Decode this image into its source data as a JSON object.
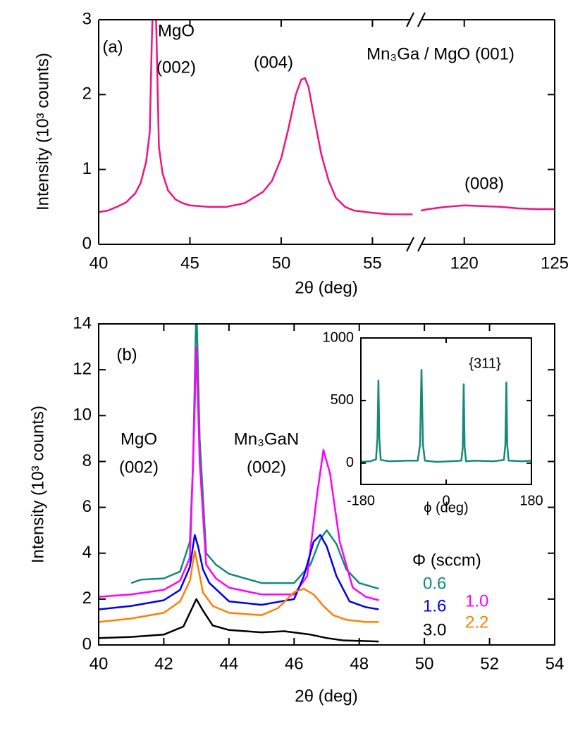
{
  "chart_data": [
    {
      "type": "line",
      "panel_label": "(a)",
      "annotations": [
        "MgO",
        "(002)",
        "(004)",
        "Mn₃Ga / MgO (001)",
        "(008)"
      ],
      "x_label": "2θ (deg)",
      "y_label": "Intensity (10³ counts)",
      "xlim": [
        40,
        125
      ],
      "x_break": [
        57.3,
        117.4
      ],
      "xticks": [
        40,
        45,
        50,
        55,
        120,
        125
      ],
      "ylim": [
        0,
        3
      ],
      "yticks": [
        0,
        1,
        2,
        3
      ],
      "series": [
        {
          "color": "#f0147f",
          "x": [
            40,
            40.5,
            41,
            41.5,
            42,
            42.3,
            42.6,
            42.8,
            42.9,
            43.0,
            43.1,
            43.2,
            43.3,
            43.5,
            43.8,
            44.2,
            44.6,
            45,
            46,
            47,
            48,
            49,
            49.5,
            50,
            50.4,
            50.8,
            51.1,
            51.3,
            51.5,
            51.8,
            52.2,
            52.6,
            53,
            53.5,
            54,
            55,
            56,
            57.2,
            117.6,
            118,
            119,
            120,
            121,
            122,
            123,
            124,
            125
          ],
          "values": [
            0.43,
            0.45,
            0.5,
            0.56,
            0.68,
            0.82,
            1.1,
            1.5,
            2.6,
            3.5,
            3.5,
            2.4,
            1.3,
            0.95,
            0.72,
            0.6,
            0.55,
            0.52,
            0.5,
            0.5,
            0.55,
            0.7,
            0.85,
            1.15,
            1.55,
            2.0,
            2.2,
            2.22,
            2.1,
            1.7,
            1.2,
            0.85,
            0.62,
            0.5,
            0.45,
            0.42,
            0.4,
            0.4,
            0.45,
            0.47,
            0.5,
            0.52,
            0.51,
            0.5,
            0.48,
            0.47,
            0.47
          ]
        }
      ]
    },
    {
      "type": "line",
      "panel_label": "(b)",
      "annotations": [
        "MgO",
        "(002)",
        "Mn₃GaN",
        "(002)"
      ],
      "legend_title": "Φ (sccm)",
      "x_label": "2θ (deg)",
      "y_label": "Intensity (10³ counts)",
      "xlim": [
        40,
        54
      ],
      "xticks": [
        40,
        42,
        44,
        46,
        48,
        50,
        52,
        54
      ],
      "ylim": [
        0,
        14
      ],
      "yticks": [
        0,
        2,
        4,
        6,
        8,
        10,
        12,
        14
      ],
      "series": [
        {
          "name": "0.6",
          "color": "#138a7a",
          "x": [
            41,
            41.3,
            42,
            42.5,
            42.8,
            42.9,
            43.0,
            43.1,
            43.3,
            43.6,
            44,
            45,
            46,
            46.5,
            46.8,
            47.0,
            47.3,
            47.6,
            48,
            48.6
          ],
          "values": [
            2.7,
            2.85,
            2.9,
            3.2,
            4.5,
            8,
            15,
            9,
            4,
            3.5,
            3.1,
            2.7,
            2.7,
            3.5,
            4.6,
            5.0,
            4.4,
            3.3,
            2.7,
            2.45
          ]
        },
        {
          "name": "1.0",
          "color": "#ff00ff",
          "x": [
            40,
            41,
            42,
            42.5,
            42.8,
            42.9,
            43.0,
            43.1,
            43.3,
            43.6,
            44,
            45,
            46,
            46.4,
            46.7,
            46.9,
            47.1,
            47.4,
            47.8,
            48.2,
            48.6
          ],
          "values": [
            2.1,
            2.2,
            2.4,
            2.8,
            3.8,
            8,
            13,
            8,
            3.5,
            2.9,
            2.5,
            2.2,
            2.2,
            3.0,
            6.5,
            8.5,
            7.5,
            4.5,
            2.5,
            2.1,
            1.95
          ]
        },
        {
          "name": "1.6",
          "color": "#0000ee",
          "x": [
            40,
            41,
            42,
            42.5,
            42.8,
            42.95,
            43.05,
            43.2,
            43.4,
            43.7,
            44,
            45,
            46,
            46.3,
            46.6,
            46.8,
            47.0,
            47.3,
            47.7,
            48.2,
            48.6
          ],
          "values": [
            1.55,
            1.7,
            1.95,
            2.4,
            3.4,
            4.8,
            4.3,
            3.3,
            2.7,
            2.3,
            1.9,
            1.75,
            2.0,
            3.0,
            4.5,
            4.8,
            4.3,
            3.0,
            1.9,
            1.65,
            1.55
          ]
        },
        {
          "name": "2.2",
          "color": "#ff8000",
          "x": [
            40,
            41,
            42,
            42.5,
            42.8,
            42.95,
            43.05,
            43.2,
            43.5,
            44,
            45,
            45.5,
            46,
            46.3,
            46.6,
            46.9,
            47.2,
            47.6,
            48.2,
            48.6
          ],
          "values": [
            1.0,
            1.15,
            1.4,
            1.9,
            2.8,
            4.1,
            3.4,
            2.3,
            1.7,
            1.4,
            1.3,
            1.6,
            2.3,
            2.45,
            2.2,
            1.7,
            1.3,
            1.1,
            1.0,
            1.0
          ]
        },
        {
          "name": "3.0",
          "color": "#000000",
          "x": [
            40,
            41,
            42,
            42.6,
            42.9,
            43.0,
            43.2,
            43.5,
            44,
            45,
            45.7,
            46.5,
            47,
            47.5,
            48.6
          ],
          "values": [
            0.3,
            0.35,
            0.45,
            0.8,
            1.7,
            2.0,
            1.5,
            0.85,
            0.65,
            0.55,
            0.6,
            0.45,
            0.3,
            0.2,
            0.15
          ]
        }
      ]
    },
    {
      "type": "line",
      "annotations": [
        "{311}"
      ],
      "x_label": "ϕ (deg)",
      "xlim": [
        -180,
        180
      ],
      "xticks": [
        -180,
        0,
        180
      ],
      "ylim": [
        -170,
        1000
      ],
      "yticks": [
        0,
        500,
        1000
      ],
      "series": [
        {
          "color": "#138a7a",
          "x": [
            -180,
            -160,
            -148,
            -145,
            -143,
            -141,
            -138,
            -120,
            -80,
            -60,
            -55,
            -52,
            -49,
            -45,
            -20,
            10,
            32,
            35,
            37,
            39,
            42,
            60,
            100,
            122,
            125,
            127,
            129,
            132,
            160,
            180
          ],
          "values": [
            10,
            15,
            30,
            200,
            660,
            200,
            25,
            15,
            20,
            20,
            150,
            745,
            150,
            20,
            10,
            15,
            20,
            120,
            630,
            130,
            15,
            20,
            15,
            25,
            150,
            645,
            140,
            20,
            15,
            20
          ]
        }
      ]
    }
  ]
}
